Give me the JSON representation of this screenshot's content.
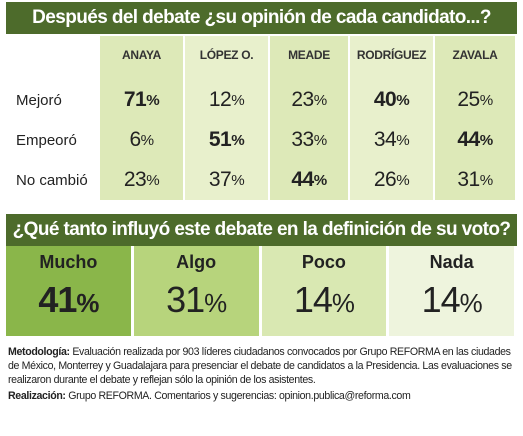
{
  "top": {
    "title": "Después del debate ¿su opinión de cada candidato...?",
    "columns": [
      "ANAYA",
      "LÓPEZ O.",
      "MEADE",
      "RODRÍGUEZ",
      "ZAVALA"
    ],
    "rows": [
      {
        "label": "Mejoró",
        "cells": [
          "71%",
          "12%",
          "23%",
          "40%",
          "25%"
        ],
        "bold": [
          0,
          3
        ]
      },
      {
        "label": "Empeoró",
        "cells": [
          "6%",
          "51%",
          "33%",
          "34%",
          "44%"
        ],
        "bold": [
          1,
          4
        ]
      },
      {
        "label": "No cambió",
        "cells": [
          "23%",
          "37%",
          "44%",
          "26%",
          "31%"
        ],
        "bold": [
          2
        ]
      }
    ]
  },
  "bottom": {
    "title": "¿Qué tanto influyó este debate en la definición de su voto?",
    "items": [
      {
        "label": "Mucho",
        "value": "41%",
        "color": "#8ab64a",
        "bold": true
      },
      {
        "label": "Algo",
        "value": "31%",
        "color": "#b7d47c",
        "bold": false
      },
      {
        "label": "Poco",
        "value": "14%",
        "color": "#d9e8b2",
        "bold": false
      },
      {
        "label": "Nada",
        "value": "14%",
        "color": "#eef4dd",
        "bold": false
      }
    ]
  },
  "notes": [
    {
      "label": "Metodología:",
      "text": "Evaluación realizada por 903 líderes ciudadanos convocados por Grupo REFORMA en las ciudades de México, Monterrey y Guadalajara para presenciar el debate de candidatos a la Presidencia. Las evaluaciones se realizaron durante el debate y reflejan sólo la opinión de los asistentes."
    },
    {
      "label": "Realización:",
      "text": "Grupo REFORMA. Comentarios y sugerencias: opinion.publica@reforma.com"
    }
  ]
}
